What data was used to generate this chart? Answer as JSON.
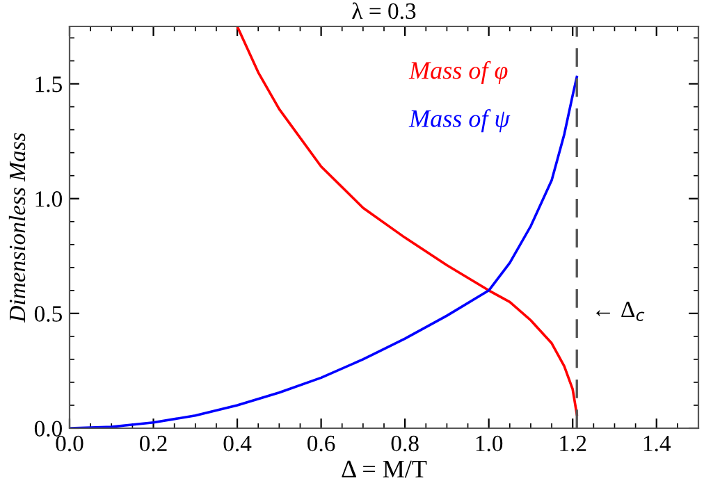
{
  "chart_data": {
    "type": "line",
    "title": "λ = 0.3",
    "xlabel": "Δ = M/T",
    "ylabel": "Dimensionless Mass",
    "series": [
      {
        "name": "Mass of φ",
        "color": "#ff0000",
        "x": [
          0.4,
          0.45,
          0.5,
          0.6,
          0.7,
          0.8,
          0.9,
          1.0,
          1.05,
          1.1,
          1.15,
          1.18,
          1.2,
          1.21
        ],
        "values": [
          1.75,
          1.55,
          1.39,
          1.14,
          0.96,
          0.83,
          0.71,
          0.6,
          0.55,
          0.47,
          0.37,
          0.27,
          0.17,
          0.06
        ]
      },
      {
        "name": "Mass of ψ",
        "color": "#0000ff",
        "x": [
          0.0,
          0.1,
          0.2,
          0.3,
          0.4,
          0.5,
          0.6,
          0.7,
          0.8,
          0.9,
          1.0,
          1.05,
          1.1,
          1.15,
          1.18,
          1.2,
          1.21
        ],
        "values": [
          0.0,
          0.006,
          0.025,
          0.055,
          0.1,
          0.155,
          0.22,
          0.3,
          0.39,
          0.49,
          0.6,
          0.72,
          0.88,
          1.08,
          1.28,
          1.45,
          1.53
        ]
      }
    ],
    "ref_lines": [
      {
        "axis": "x",
        "value": 1.21,
        "color": "#555555",
        "line_style": "dashed"
      }
    ],
    "annotations": [
      "← Δ$_{c}$"
    ],
    "xlim": [
      0,
      1.5
    ],
    "ylim": [
      0,
      1.75
    ],
    "xticks": [
      {
        "value": 0,
        "label": "0.0"
      },
      {
        "value": 0.2,
        "label": "0.2"
      },
      {
        "value": 0.4,
        "label": "0.4"
      },
      {
        "value": 0.6,
        "label": "0.6"
      },
      {
        "value": 0.8,
        "label": "0.8"
      },
      {
        "value": 1.0,
        "label": "1.0"
      },
      {
        "value": 1.2,
        "label": "1.2"
      },
      {
        "value": 1.4,
        "label": "1.4"
      }
    ],
    "yticks": [
      {
        "value": 0,
        "label": "0.0"
      },
      {
        "value": 0.5,
        "label": "0.5"
      },
      {
        "value": 1.0,
        "label": "1.0"
      },
      {
        "value": 1.5,
        "label": "1.5"
      }
    ],
    "legend": "top",
    "grid": false,
    "marker": "none",
    "line_style": "solid"
  }
}
